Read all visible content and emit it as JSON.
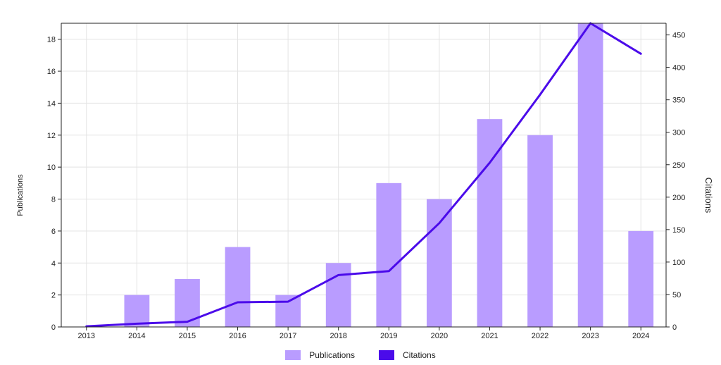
{
  "chart_data": {
    "type": "bar",
    "categories": [
      "2013",
      "2014",
      "2015",
      "2016",
      "2017",
      "2018",
      "2019",
      "2020",
      "2021",
      "2022",
      "2023",
      "2024"
    ],
    "series": [
      {
        "name": "Publications",
        "type": "bar",
        "axis": "left",
        "color": "#b99cff",
        "values": [
          0,
          2,
          3,
          5,
          2,
          4,
          9,
          8,
          13,
          12,
          19,
          6
        ]
      },
      {
        "name": "Citations",
        "type": "line",
        "axis": "right",
        "color": "#4b0bea",
        "values": [
          1,
          5,
          8,
          38,
          39,
          80,
          86,
          160,
          253,
          358,
          468,
          421
        ]
      }
    ],
    "ylabel": "Publications",
    "y2label": "Citations",
    "ylim": [
      0,
      19
    ],
    "y2lim": [
      0,
      468
    ],
    "yticks": [
      0,
      2,
      4,
      6,
      8,
      10,
      12,
      14,
      16,
      18
    ],
    "y2ticks": [
      0,
      50,
      100,
      150,
      200,
      250,
      300,
      350,
      400,
      450
    ],
    "grid": true,
    "legend_position": "bottom"
  }
}
